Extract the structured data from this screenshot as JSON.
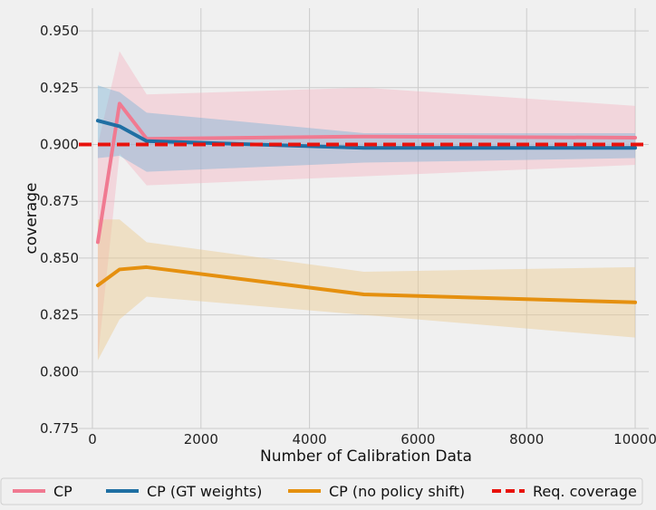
{
  "chart_data": {
    "type": "line",
    "title": "",
    "xlabel": "Number of Calibration Data",
    "ylabel": "coverage",
    "xlim": [
      -250,
      10250
    ],
    "ylim": [
      0.775,
      0.96
    ],
    "x_ticks": [
      0,
      2000,
      4000,
      6000,
      8000,
      10000
    ],
    "y_ticks": [
      0.775,
      0.8,
      0.825,
      0.85,
      0.875,
      0.9,
      0.925,
      0.95
    ],
    "x_tick_labels": [
      "0",
      "2000",
      "4000",
      "6000",
      "8000",
      "10000"
    ],
    "y_tick_labels": [
      "0.775",
      "0.800",
      "0.825",
      "0.850",
      "0.875",
      "0.900",
      "0.925",
      "0.950"
    ],
    "grid": true,
    "legend_placement": "bottom",
    "x": [
      100,
      500,
      1000,
      5000,
      10000
    ],
    "series": [
      {
        "name": "CP",
        "color": "#f07a91",
        "band_color": "#f5b6c3",
        "values": [
          0.857,
          0.918,
          0.9025,
          0.9035,
          0.903
        ],
        "lower": [
          0.806,
          0.896,
          0.882,
          0.886,
          0.891
        ],
        "upper": [
          0.9,
          0.941,
          0.922,
          0.925,
          0.917
        ]
      },
      {
        "name": "CP (GT weights)",
        "color": "#1f6fa3",
        "band_color": "#7fb3d5",
        "values": [
          0.9105,
          0.908,
          0.9015,
          0.8985,
          0.8985
        ],
        "lower": [
          0.894,
          0.895,
          0.888,
          0.892,
          0.894
        ],
        "upper": [
          0.926,
          0.923,
          0.914,
          0.905,
          0.905
        ]
      },
      {
        "name": "CP (no policy shift)",
        "color": "#e5900f",
        "band_color": "#ebc98f",
        "values": [
          0.838,
          0.845,
          0.846,
          0.834,
          0.8305
        ],
        "lower": [
          0.805,
          0.823,
          0.833,
          0.825,
          0.815
        ],
        "upper": [
          0.867,
          0.867,
          0.857,
          0.844,
          0.846
        ]
      }
    ],
    "reference_line": {
      "name": "Req. coverage",
      "value": 0.9,
      "color": "#e8120c",
      "style": "dashed"
    }
  }
}
